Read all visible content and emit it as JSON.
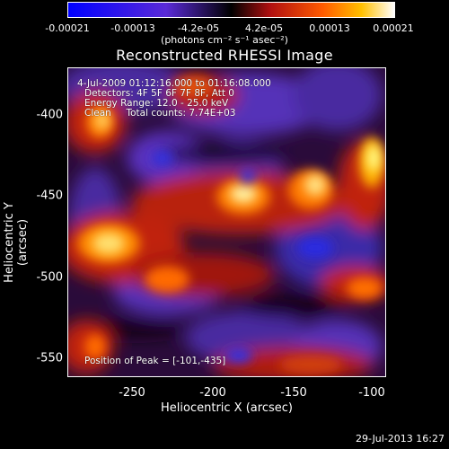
{
  "colorbar": {
    "ticks": [
      "-0.00021",
      "-0.00013",
      "-4.2e-05",
      "4.2e-05",
      "0.00013",
      "0.00021"
    ],
    "units": "(photons cm⁻² s⁻¹ asec⁻²)"
  },
  "title": "Reconstructed RHESSI Image",
  "info": {
    "time_range": "4-Jul-2009 01:12:16.000 to 01:16:08.000",
    "detectors": "Detectors: 4F 5F 6F 7F 8F, Att 0",
    "energy": "Energy Range: 12.0 - 25.0 keV",
    "clean": "Clean     Total counts: 7.74E+03",
    "peak": "Position of Peak = [-101,-435]"
  },
  "axes": {
    "xlabel": "Heliocentric X (arcsec)",
    "ylabel": "Heliocentric Y (arcsec)",
    "xticks": [
      "-250",
      "-200",
      "-150",
      "-100"
    ],
    "yticks": [
      "-400",
      "-450",
      "-500",
      "-550"
    ]
  },
  "datestamp": "29-Jul-2013 16:27",
  "colors": {
    "low": "#0000ff",
    "mid_low": "#4b2aa8",
    "mid_high": "#c0200a",
    "high": "#ff8c00",
    "peak": "#ffff80"
  }
}
